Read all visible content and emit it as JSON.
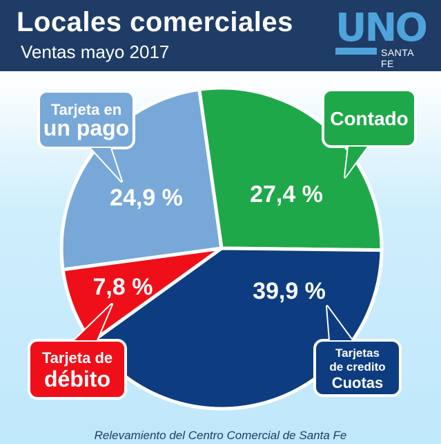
{
  "header": {
    "title": "Locales comerciales",
    "subtitle": "Ventas mayo 2017",
    "logo_main": "UNO",
    "logo_sub": "SANTA FE"
  },
  "chart_data": {
    "type": "pie",
    "slices": [
      {
        "label_lines": [
          "Contado"
        ],
        "value": 27.4,
        "value_label": "27,4 %",
        "color": "#1fa84a",
        "bubble_color": "#1fa84a"
      },
      {
        "label_lines": [
          "Tarjetas",
          "de credito",
          "Cuotas"
        ],
        "value": 39.9,
        "value_label": "39,9 %",
        "color": "#0d3d80",
        "bubble_color": "#0d3d80"
      },
      {
        "label_lines": [
          "Tarjeta de",
          "débito"
        ],
        "value": 7.8,
        "value_label": "7,8 %",
        "color": "#ef0f19",
        "bubble_color": "#ef0f19"
      },
      {
        "label_lines": [
          "Tarjeta en",
          "un pago"
        ],
        "value": 24.9,
        "value_label": "24,9 %",
        "color": "#78a8d8",
        "bubble_color": "#78a8d8"
      }
    ]
  },
  "footer": {
    "source": "Relevamiento del Centro Comercial de Santa Fe"
  },
  "colors": {
    "header_bg": "#1e3c66",
    "logo_blue": "#4fa3dc"
  }
}
